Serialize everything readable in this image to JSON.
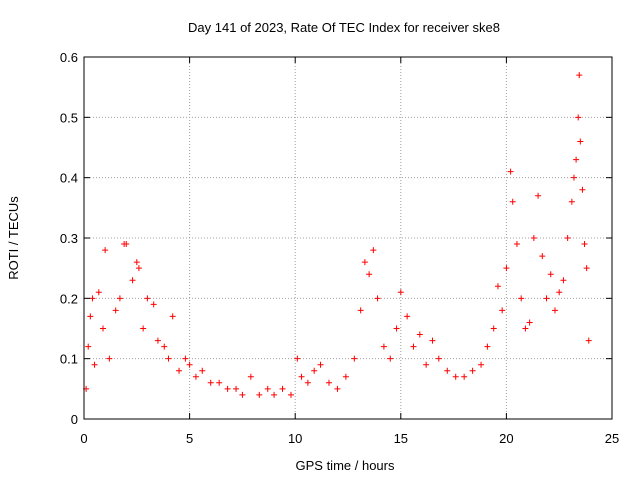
{
  "chart_data": {
    "type": "scatter",
    "title": "Day 141 of 2023, Rate Of TEC Index for receiver ske8",
    "xlabel": "GPS time / hours",
    "ylabel": "ROTI / TECUs",
    "xlim": [
      0,
      25
    ],
    "ylim": [
      0,
      0.6
    ],
    "x_ticks": [
      "0",
      "5",
      "10",
      "15",
      "20",
      "25"
    ],
    "y_ticks": [
      "0",
      "0.1",
      "0.2",
      "0.3",
      "0.4",
      "0.5",
      "0.6"
    ],
    "grid": true,
    "marker": "+",
    "color": "#ff0000",
    "series": [
      {
        "name": "ROTI",
        "points": [
          [
            0.1,
            0.05
          ],
          [
            0.2,
            0.12
          ],
          [
            0.3,
            0.17
          ],
          [
            0.4,
            0.2
          ],
          [
            0.5,
            0.09
          ],
          [
            0.7,
            0.21
          ],
          [
            0.9,
            0.15
          ],
          [
            1.0,
            0.28
          ],
          [
            1.2,
            0.1
          ],
          [
            1.5,
            0.18
          ],
          [
            1.7,
            0.2
          ],
          [
            1.9,
            0.29
          ],
          [
            2.0,
            0.29
          ],
          [
            2.3,
            0.23
          ],
          [
            2.5,
            0.26
          ],
          [
            2.6,
            0.25
          ],
          [
            2.8,
            0.15
          ],
          [
            3.0,
            0.2
          ],
          [
            3.3,
            0.19
          ],
          [
            3.5,
            0.13
          ],
          [
            3.8,
            0.12
          ],
          [
            4.0,
            0.1
          ],
          [
            4.2,
            0.17
          ],
          [
            4.5,
            0.08
          ],
          [
            4.8,
            0.1
          ],
          [
            5.0,
            0.09
          ],
          [
            5.3,
            0.07
          ],
          [
            5.6,
            0.08
          ],
          [
            6.0,
            0.06
          ],
          [
            6.4,
            0.06
          ],
          [
            6.8,
            0.05
          ],
          [
            7.2,
            0.05
          ],
          [
            7.5,
            0.04
          ],
          [
            7.9,
            0.07
          ],
          [
            8.3,
            0.04
          ],
          [
            8.7,
            0.05
          ],
          [
            9.0,
            0.04
          ],
          [
            9.4,
            0.05
          ],
          [
            9.8,
            0.04
          ],
          [
            10.1,
            0.1
          ],
          [
            10.3,
            0.07
          ],
          [
            10.6,
            0.06
          ],
          [
            10.9,
            0.08
          ],
          [
            11.2,
            0.09
          ],
          [
            11.6,
            0.06
          ],
          [
            12.0,
            0.05
          ],
          [
            12.4,
            0.07
          ],
          [
            12.8,
            0.1
          ],
          [
            13.1,
            0.18
          ],
          [
            13.3,
            0.26
          ],
          [
            13.5,
            0.24
          ],
          [
            13.7,
            0.28
          ],
          [
            13.9,
            0.2
          ],
          [
            14.2,
            0.12
          ],
          [
            14.5,
            0.1
          ],
          [
            14.8,
            0.15
          ],
          [
            15.0,
            0.21
          ],
          [
            15.3,
            0.17
          ],
          [
            15.6,
            0.12
          ],
          [
            15.9,
            0.14
          ],
          [
            16.2,
            0.09
          ],
          [
            16.5,
            0.13
          ],
          [
            16.8,
            0.1
          ],
          [
            17.2,
            0.08
          ],
          [
            17.6,
            0.07
          ],
          [
            18.0,
            0.07
          ],
          [
            18.4,
            0.08
          ],
          [
            18.8,
            0.09
          ],
          [
            19.1,
            0.12
          ],
          [
            19.4,
            0.15
          ],
          [
            19.6,
            0.22
          ],
          [
            19.8,
            0.18
          ],
          [
            20.0,
            0.25
          ],
          [
            20.2,
            0.41
          ],
          [
            20.3,
            0.36
          ],
          [
            20.5,
            0.29
          ],
          [
            20.7,
            0.2
          ],
          [
            20.9,
            0.15
          ],
          [
            21.1,
            0.16
          ],
          [
            21.3,
            0.3
          ],
          [
            21.5,
            0.37
          ],
          [
            21.7,
            0.27
          ],
          [
            21.9,
            0.2
          ],
          [
            22.1,
            0.24
          ],
          [
            22.3,
            0.18
          ],
          [
            22.5,
            0.21
          ],
          [
            22.7,
            0.23
          ],
          [
            22.9,
            0.3
          ],
          [
            23.1,
            0.36
          ],
          [
            23.2,
            0.4
          ],
          [
            23.3,
            0.43
          ],
          [
            23.4,
            0.5
          ],
          [
            23.45,
            0.57
          ],
          [
            23.5,
            0.46
          ],
          [
            23.6,
            0.38
          ],
          [
            23.7,
            0.29
          ],
          [
            23.8,
            0.25
          ],
          [
            23.9,
            0.13
          ]
        ]
      }
    ]
  }
}
